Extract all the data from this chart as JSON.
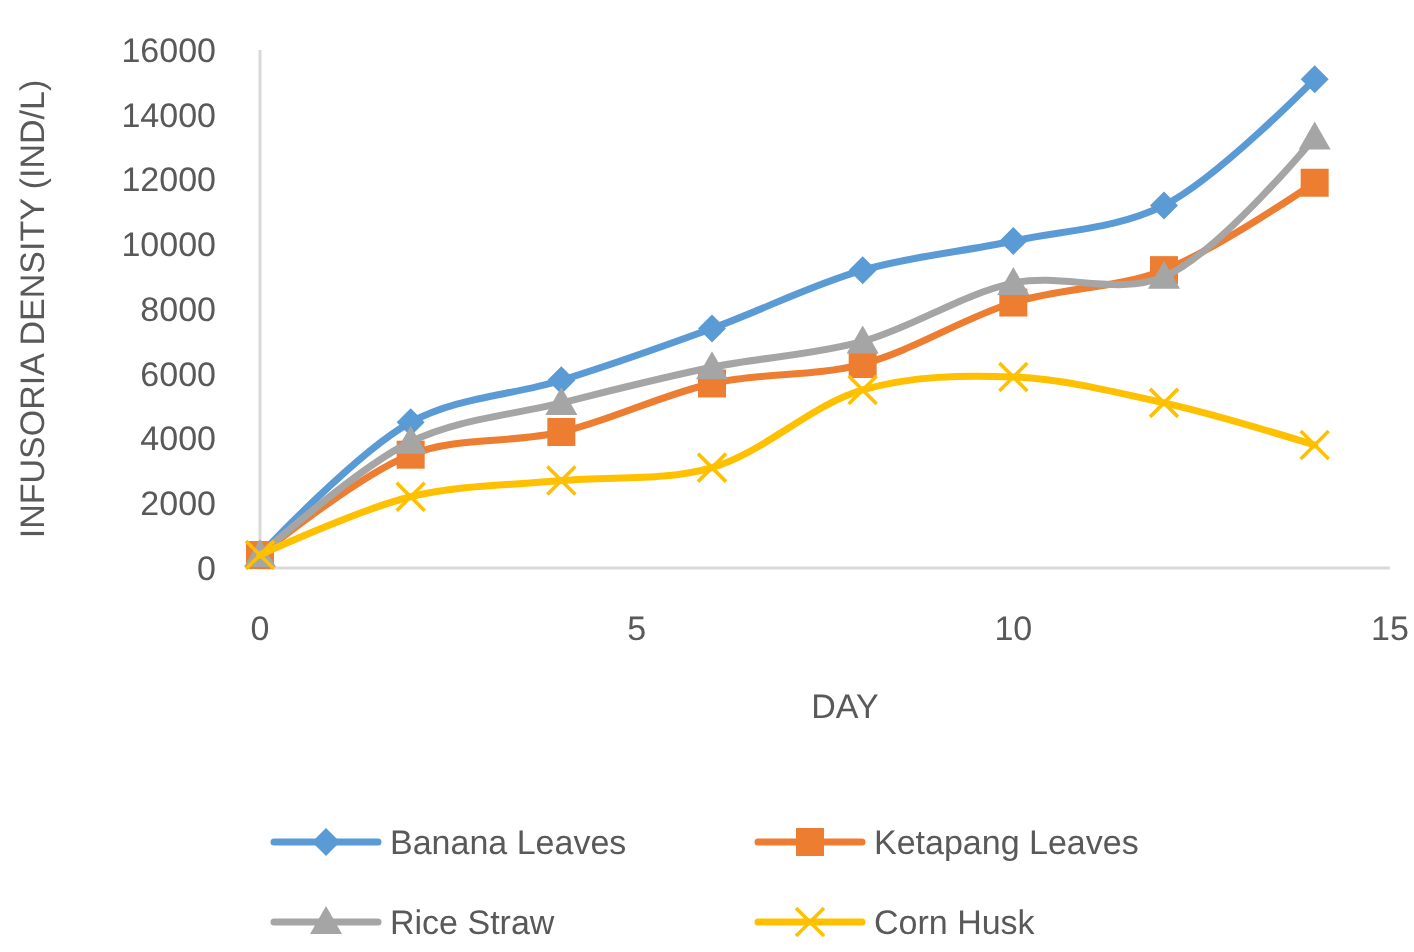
{
  "chart_data": {
    "type": "line",
    "xlabel": "DAY",
    "ylabel": "INFUSORIA DENSITY (IND/L)",
    "x": [
      0,
      2,
      4,
      6,
      8,
      10,
      12,
      14
    ],
    "xlim": [
      0,
      15
    ],
    "xticks": [
      0,
      5,
      10,
      15
    ],
    "ylim": [
      0,
      16000
    ],
    "yticks": [
      0,
      2000,
      4000,
      6000,
      8000,
      10000,
      12000,
      14000,
      16000
    ],
    "grid": false,
    "legend": "bottom",
    "series": [
      {
        "name": "Banana Leaves",
        "color": "#5b9bd5",
        "marker": "diamond",
        "values": [
          400,
          4500,
          5800,
          7400,
          9200,
          10100,
          11200,
          15100
        ]
      },
      {
        "name": "Ketapang Leaves",
        "color": "#ed7d31",
        "marker": "square",
        "values": [
          400,
          3500,
          4200,
          5700,
          6300,
          8200,
          9200,
          11900
        ]
      },
      {
        "name": "Rice Straw",
        "color": "#a5a5a5",
        "marker": "triangle",
        "values": [
          400,
          3900,
          5100,
          6200,
          7000,
          8800,
          9000,
          13300
        ]
      },
      {
        "name": "Corn Husk",
        "color": "#ffc000",
        "marker": "cross",
        "values": [
          400,
          2200,
          2700,
          3100,
          5500,
          5900,
          5100,
          3800
        ]
      }
    ]
  }
}
